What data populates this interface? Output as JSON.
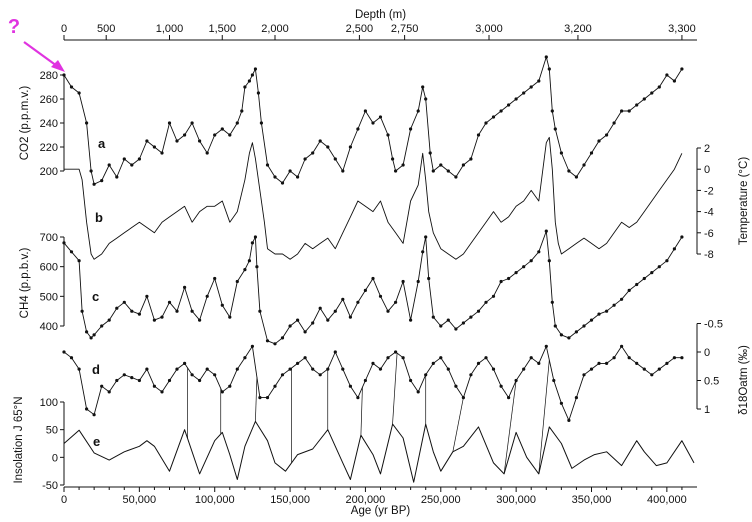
{
  "colors": {
    "line": "#111111",
    "annotation": "#e033e0"
  },
  "annotation": {
    "text": "?"
  },
  "chart_data": {
    "type": "line",
    "x_bottom": {
      "label": "Age (yr BP)",
      "lim": [
        0,
        420000
      ],
      "ticks": [
        0,
        50000,
        100000,
        150000,
        200000,
        250000,
        300000,
        350000,
        400000
      ],
      "tick_labels": [
        "0",
        "50,000",
        "100,000",
        "150,000",
        "200,000",
        "250,000",
        "300,000",
        "350,000",
        "400,000"
      ]
    },
    "x_top": {
      "label": "Depth (m)",
      "ticks": [
        {
          "label": "0",
          "age": 0
        },
        {
          "label": "500",
          "age": 28000
        },
        {
          "label": "1,000",
          "age": 70000
        },
        {
          "label": "1,500",
          "age": 105000
        },
        {
          "label": "2,000",
          "age": 140000
        },
        {
          "label": "2,500",
          "age": 196000
        },
        {
          "label": "2,750",
          "age": 226000
        },
        {
          "label": "3,000",
          "age": 282000
        },
        {
          "label": "3,200",
          "age": 341000
        },
        {
          "label": "3,300",
          "age": 410000
        }
      ]
    },
    "axes": {
      "co2": {
        "label": "CO2 (p.p.m.v.)",
        "ticks": [
          200,
          220,
          240,
          260,
          280
        ],
        "side": "left"
      },
      "temp": {
        "label": "Temperature (°C)",
        "ticks": [
          2,
          0,
          -2,
          -4,
          -6,
          -8
        ],
        "side": "right"
      },
      "ch4": {
        "label": "CH4 (p.p.b.v.)",
        "ticks": [
          400,
          500,
          600,
          700
        ],
        "side": "left"
      },
      "d18o": {
        "label": "δ18Oatm (‰)",
        "ticks": [
          -0.5,
          0.0,
          0.5,
          1.0
        ],
        "side": "right"
      },
      "insol": {
        "label": "Insolation J 65°N",
        "ticks": [
          -50,
          0,
          50,
          100
        ],
        "side": "left"
      }
    },
    "series": [
      {
        "panel": "a",
        "axis": "co2",
        "x": [
          0,
          5000,
          10000,
          15000,
          18000,
          20000,
          25000,
          30000,
          35000,
          40000,
          45000,
          50000,
          55000,
          60000,
          65000,
          70000,
          75000,
          80000,
          85000,
          90000,
          95000,
          100000,
          105000,
          110000,
          115000,
          118000,
          120000,
          123000,
          125000,
          127000,
          129000,
          131000,
          135000,
          140000,
          145000,
          150000,
          155000,
          160000,
          165000,
          170000,
          175000,
          180000,
          185000,
          190000,
          195000,
          200000,
          205000,
          210000,
          215000,
          218000,
          220000,
          225000,
          230000,
          235000,
          238000,
          240000,
          243000,
          245000,
          250000,
          255000,
          260000,
          265000,
          270000,
          275000,
          280000,
          285000,
          290000,
          295000,
          300000,
          305000,
          310000,
          315000,
          320000,
          322000,
          324000,
          326000,
          330000,
          335000,
          340000,
          345000,
          350000,
          355000,
          360000,
          365000,
          370000,
          375000,
          380000,
          385000,
          390000,
          395000,
          400000,
          405000,
          410000
        ],
        "y": [
          280,
          270,
          265,
          240,
          200,
          189,
          192,
          205,
          195,
          210,
          205,
          210,
          225,
          220,
          215,
          240,
          225,
          230,
          240,
          225,
          215,
          230,
          235,
          230,
          240,
          250,
          270,
          275,
          280,
          285,
          265,
          240,
          205,
          195,
          190,
          200,
          195,
          210,
          215,
          225,
          220,
          210,
          200,
          220,
          235,
          250,
          240,
          245,
          230,
          210,
          200,
          205,
          235,
          250,
          270,
          260,
          215,
          200,
          205,
          200,
          195,
          205,
          210,
          230,
          240,
          245,
          250,
          255,
          260,
          265,
          270,
          275,
          295,
          285,
          250,
          235,
          215,
          200,
          195,
          205,
          215,
          225,
          230,
          240,
          250,
          250,
          255,
          260,
          265,
          270,
          280,
          275,
          285
        ]
      },
      {
        "panel": "b",
        "axis": "temp",
        "x": [
          0,
          5000,
          10000,
          12000,
          15000,
          18000,
          20000,
          25000,
          30000,
          35000,
          40000,
          45000,
          50000,
          55000,
          60000,
          65000,
          70000,
          75000,
          80000,
          85000,
          90000,
          95000,
          100000,
          105000,
          110000,
          115000,
          120000,
          123000,
          125000,
          127000,
          128000,
          130000,
          133000,
          135000,
          140000,
          145000,
          150000,
          155000,
          160000,
          165000,
          170000,
          175000,
          180000,
          185000,
          190000,
          195000,
          200000,
          205000,
          210000,
          215000,
          220000,
          225000,
          230000,
          235000,
          238000,
          240000,
          242000,
          245000,
          250000,
          255000,
          260000,
          265000,
          270000,
          275000,
          280000,
          285000,
          290000,
          295000,
          300000,
          305000,
          310000,
          315000,
          320000,
          322000,
          324000,
          326000,
          328000,
          330000,
          335000,
          340000,
          345000,
          350000,
          355000,
          360000,
          365000,
          370000,
          375000,
          380000,
          385000,
          390000,
          395000,
          400000,
          405000,
          410000
        ],
        "y": [
          0,
          0,
          0,
          -1,
          -5,
          -8,
          -8.5,
          -8,
          -7,
          -6.5,
          -6,
          -5.5,
          -5,
          -5.5,
          -6,
          -5,
          -4.5,
          -4,
          -3.5,
          -5,
          -4,
          -3.5,
          -3.5,
          -3,
          -5,
          -4,
          -1,
          1.5,
          2.5,
          1,
          0,
          -2,
          -5,
          -7.5,
          -8,
          -8,
          -8.5,
          -8,
          -7,
          -7.5,
          -7,
          -6.5,
          -7.5,
          -6,
          -4.5,
          -3,
          -3.5,
          -4,
          -3,
          -5,
          -6,
          -7,
          -3,
          -1.5,
          1.5,
          -1,
          -4,
          -6,
          -7.5,
          -8,
          -8.5,
          -8,
          -7,
          -6,
          -5,
          -4,
          -5,
          -4.5,
          -3.5,
          -3,
          -2,
          -3,
          2.5,
          3,
          0,
          -5,
          -7,
          -8,
          -7.5,
          -7,
          -6.5,
          -7,
          -7.5,
          -7,
          -6,
          -5,
          -5.5,
          -5,
          -4,
          -3,
          -2,
          -1,
          0,
          1.5
        ]
      },
      {
        "panel": "c",
        "axis": "ch4",
        "x": [
          0,
          5000,
          10000,
          12000,
          15000,
          18000,
          20000,
          25000,
          30000,
          35000,
          40000,
          45000,
          50000,
          55000,
          60000,
          65000,
          70000,
          75000,
          80000,
          85000,
          90000,
          95000,
          100000,
          105000,
          110000,
          115000,
          120000,
          123000,
          125000,
          127000,
          128000,
          130000,
          135000,
          140000,
          145000,
          150000,
          155000,
          160000,
          165000,
          170000,
          175000,
          180000,
          185000,
          190000,
          195000,
          200000,
          205000,
          210000,
          215000,
          220000,
          225000,
          230000,
          235000,
          238000,
          240000,
          242000,
          245000,
          250000,
          255000,
          260000,
          265000,
          270000,
          275000,
          280000,
          285000,
          290000,
          295000,
          300000,
          305000,
          310000,
          315000,
          320000,
          322000,
          324000,
          326000,
          330000,
          335000,
          340000,
          345000,
          350000,
          355000,
          360000,
          365000,
          370000,
          375000,
          380000,
          385000,
          390000,
          395000,
          400000,
          405000,
          410000
        ],
        "y": [
          680,
          650,
          620,
          450,
          380,
          360,
          370,
          400,
          420,
          460,
          480,
          450,
          440,
          500,
          420,
          430,
          480,
          450,
          530,
          450,
          420,
          500,
          560,
          470,
          430,
          550,
          590,
          620,
          680,
          700,
          600,
          450,
          350,
          340,
          360,
          400,
          420,
          380,
          410,
          460,
          420,
          450,
          490,
          430,
          480,
          520,
          560,
          500,
          450,
          480,
          550,
          420,
          550,
          650,
          700,
          560,
          430,
          400,
          420,
          390,
          410,
          430,
          450,
          480,
          500,
          550,
          560,
          580,
          600,
          620,
          650,
          720,
          620,
          480,
          400,
          370,
          360,
          380,
          400,
          420,
          440,
          450,
          470,
          490,
          520,
          540,
          560,
          580,
          600,
          620,
          660,
          700
        ]
      },
      {
        "panel": "d",
        "axis": "d18o",
        "x": [
          0,
          5000,
          10000,
          15000,
          20000,
          25000,
          30000,
          35000,
          40000,
          45000,
          50000,
          55000,
          60000,
          65000,
          70000,
          75000,
          80000,
          85000,
          90000,
          95000,
          100000,
          105000,
          110000,
          115000,
          120000,
          125000,
          130000,
          135000,
          140000,
          145000,
          150000,
          155000,
          160000,
          165000,
          170000,
          175000,
          180000,
          185000,
          190000,
          195000,
          200000,
          205000,
          210000,
          215000,
          220000,
          225000,
          230000,
          235000,
          240000,
          245000,
          250000,
          255000,
          260000,
          265000,
          270000,
          275000,
          280000,
          285000,
          290000,
          295000,
          300000,
          305000,
          310000,
          315000,
          320000,
          325000,
          330000,
          335000,
          340000,
          345000,
          350000,
          355000,
          360000,
          365000,
          370000,
          375000,
          380000,
          385000,
          390000,
          395000,
          400000,
          405000,
          410000
        ],
        "y": [
          0.0,
          0.1,
          0.3,
          1.0,
          1.1,
          0.6,
          0.7,
          0.5,
          0.4,
          0.45,
          0.5,
          0.3,
          0.6,
          0.7,
          0.5,
          0.3,
          0.2,
          0.4,
          0.5,
          0.3,
          0.4,
          0.7,
          0.6,
          0.3,
          0.1,
          -0.1,
          0.8,
          0.8,
          0.6,
          0.4,
          0.3,
          0.2,
          0.1,
          0.3,
          0.4,
          0.3,
          0.0,
          0.3,
          0.6,
          0.8,
          0.5,
          0.2,
          0.3,
          0.1,
          0.0,
          0.1,
          0.5,
          0.7,
          0.4,
          0.2,
          0.1,
          0.3,
          0.6,
          0.8,
          0.4,
          0.2,
          0.1,
          0.3,
          0.6,
          0.8,
          0.5,
          0.3,
          0.1,
          0.2,
          -0.1,
          0.5,
          0.9,
          1.2,
          0.8,
          0.4,
          0.3,
          0.2,
          0.2,
          0.1,
          -0.1,
          0.1,
          0.2,
          0.3,
          0.4,
          0.3,
          0.2,
          0.1,
          0.1
        ]
      },
      {
        "panel": "e",
        "axis": "insol",
        "x": [
          0,
          10000,
          20000,
          30000,
          40000,
          50000,
          55000,
          60000,
          70000,
          80000,
          90000,
          100000,
          105000,
          110000,
          115000,
          120000,
          127000,
          135000,
          140000,
          147000,
          155000,
          165000,
          175000,
          185000,
          190000,
          197000,
          205000,
          210000,
          218000,
          225000,
          232000,
          240000,
          245000,
          250000,
          258000,
          265000,
          275000,
          285000,
          292000,
          300000,
          307000,
          315000,
          322000,
          330000,
          337000,
          345000,
          352000,
          360000,
          370000,
          380000,
          385000,
          393000,
          400000,
          410000,
          418000
        ],
        "y": [
          25,
          49,
          8,
          -5,
          10,
          20,
          30,
          20,
          -25,
          50,
          -30,
          30,
          45,
          5,
          -40,
          20,
          65,
          30,
          -10,
          -25,
          5,
          15,
          50,
          -10,
          -40,
          40,
          5,
          -30,
          60,
          35,
          -45,
          60,
          10,
          -25,
          10,
          20,
          55,
          -10,
          -30,
          45,
          0,
          -30,
          55,
          25,
          -20,
          -5,
          5,
          10,
          -15,
          30,
          10,
          -15,
          -10,
          30,
          -10
        ]
      }
    ],
    "tie_lines": [
      [
        128000,
        127000
      ],
      [
        82000,
        82000
      ],
      [
        104000,
        104000
      ],
      [
        151000,
        151000
      ],
      [
        175000,
        175000
      ],
      [
        198000,
        197000
      ],
      [
        221000,
        218000
      ],
      [
        240000,
        240000
      ],
      [
        265000,
        258000
      ],
      [
        300000,
        292000
      ],
      [
        322000,
        315000
      ]
    ]
  }
}
